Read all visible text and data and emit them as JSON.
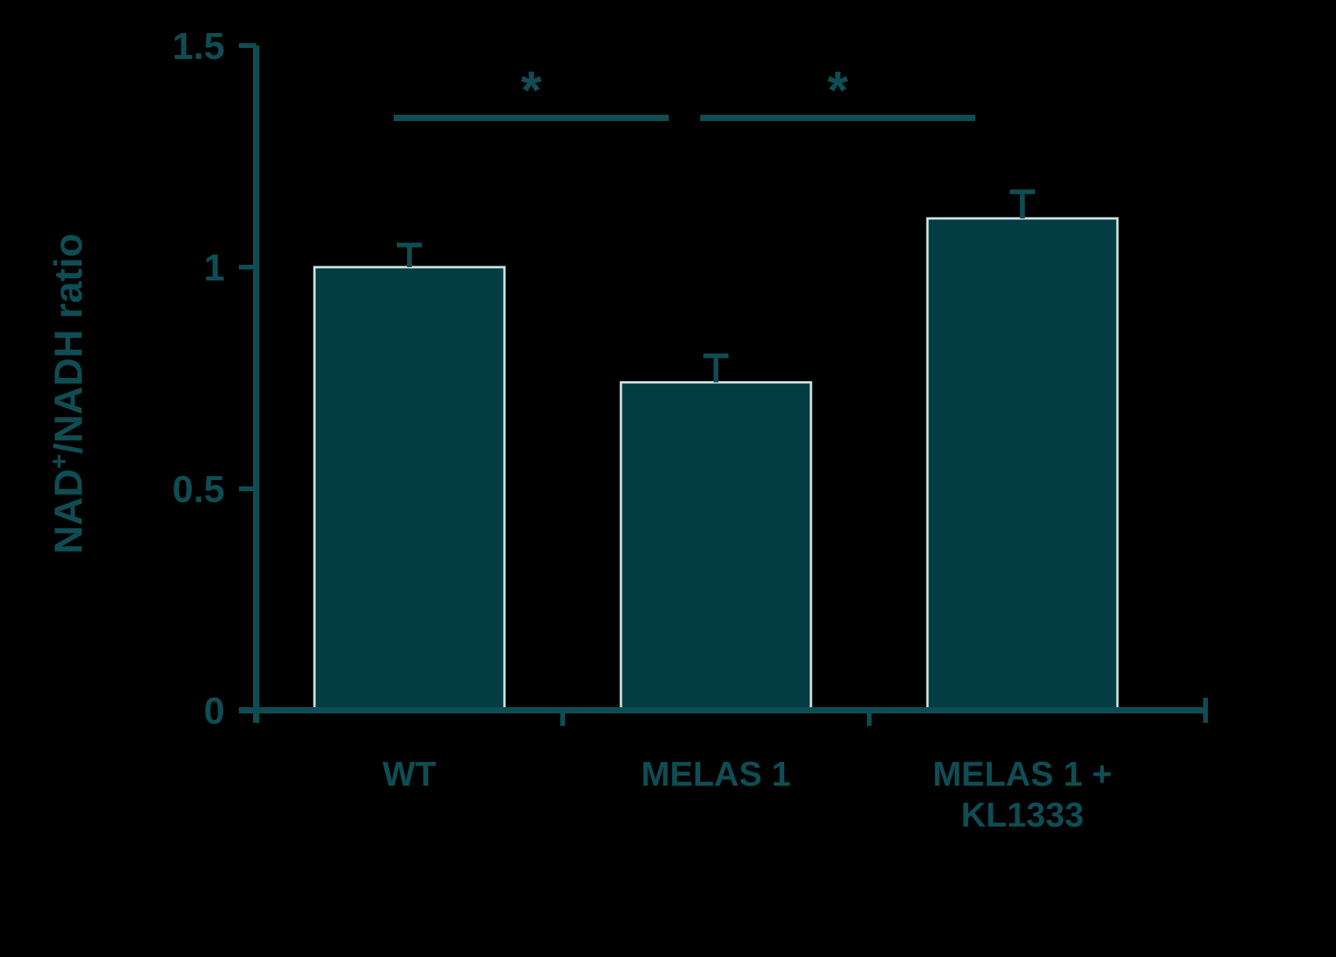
{
  "chart_data": {
    "type": "bar",
    "ylabel": "NAD$^{+}$/NADH ratio",
    "categories": [
      "WT",
      "MELAS 1",
      "MELAS 1 +\nKL1333"
    ],
    "values": [
      1.0,
      0.74,
      1.11
    ],
    "color": "#043c43",
    "errors": [
      [
        1.0,
        1.05
      ],
      [
        0.74,
        0.8
      ],
      [
        1.11,
        1.17
      ]
    ],
    "ylim": [
      0,
      1.5
    ],
    "yticks": [
      0,
      0.5,
      1,
      1.5
    ],
    "annotations": [
      "*",
      "*"
    ]
  }
}
